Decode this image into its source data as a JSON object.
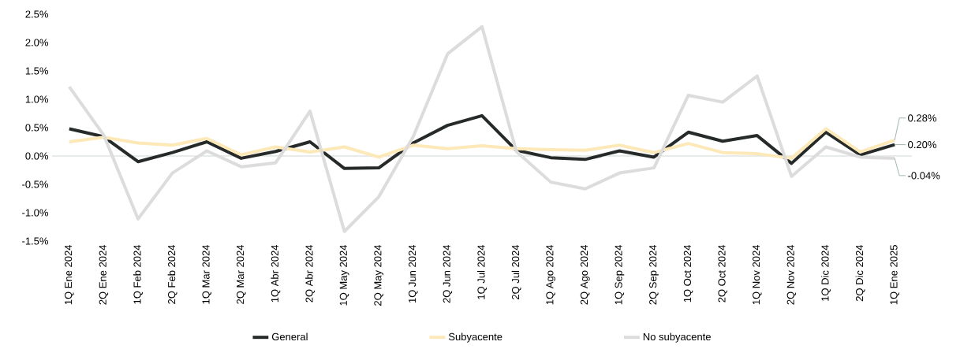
{
  "chart_data": {
    "type": "line",
    "categories": [
      "1Q Ene 2024",
      "2Q Ene 2024",
      "1Q Feb 2024",
      "2Q Feb 2024",
      "1Q Mar 2024",
      "2Q Mar 2024",
      "1Q Abr 2024",
      "2Q Abr 2024",
      "1Q May 2024",
      "2Q May 2024",
      "1Q Jun 2024",
      "2Q Jun 2024",
      "1Q Jul 2024",
      "2Q Jul 2024",
      "1Q Ago 2024",
      "2Q Ago 2024",
      "1Q Sep 2024",
      "2Q Sep 2024",
      "1Q Oct 2024",
      "2Q Oct 2024",
      "1Q Nov 2024",
      "2Q Nov 2024",
      "1Q Dic 2024",
      "2Q Dic 2024",
      "1Q Ene 2025"
    ],
    "series": [
      {
        "name": "General",
        "color": "#262b29",
        "values": [
          0.48,
          0.34,
          -0.1,
          0.06,
          0.25,
          -0.04,
          0.08,
          0.25,
          -0.22,
          -0.21,
          0.23,
          0.54,
          0.71,
          0.1,
          -0.03,
          -0.06,
          0.09,
          -0.02,
          0.42,
          0.26,
          0.36,
          -0.13,
          0.42,
          0.02,
          0.2
        ],
        "value_labels": [
          null,
          null,
          null,
          null,
          null,
          null,
          null,
          null,
          null,
          null,
          null,
          null,
          null,
          null,
          null,
          null,
          null,
          null,
          null,
          null,
          null,
          null,
          null,
          null,
          "0.20%"
        ]
      },
      {
        "name": "Subyacente",
        "color": "#fde8b8",
        "values": [
          0.25,
          0.33,
          0.23,
          0.19,
          0.31,
          0.02,
          0.16,
          0.07,
          0.16,
          -0.02,
          0.19,
          0.13,
          0.18,
          0.13,
          0.11,
          0.1,
          0.19,
          0.06,
          0.22,
          0.06,
          0.04,
          -0.04,
          0.48,
          0.07,
          0.28
        ],
        "value_labels": [
          null,
          null,
          null,
          null,
          null,
          null,
          null,
          null,
          null,
          null,
          null,
          null,
          null,
          null,
          null,
          null,
          null,
          null,
          null,
          null,
          null,
          null,
          null,
          null,
          "0.28%"
        ]
      },
      {
        "name": "No subyacente",
        "color": "#dcdcdc",
        "values": [
          1.22,
          0.37,
          -1.11,
          -0.3,
          0.09,
          -0.19,
          -0.12,
          0.79,
          -1.33,
          -0.72,
          0.34,
          1.8,
          2.28,
          0.08,
          -0.46,
          -0.58,
          -0.3,
          -0.21,
          1.07,
          0.95,
          1.41,
          -0.36,
          0.16,
          -0.02,
          -0.04
        ],
        "value_labels": [
          null,
          null,
          null,
          null,
          null,
          null,
          null,
          null,
          null,
          null,
          null,
          null,
          null,
          null,
          null,
          null,
          null,
          null,
          null,
          null,
          null,
          null,
          null,
          null,
          "-0.04%"
        ]
      }
    ],
    "ylim": [
      -1.5,
      2.5
    ],
    "yticks": [
      {
        "value": -1.5,
        "label": "-1.5%"
      },
      {
        "value": -1.0,
        "label": "-1.0%"
      },
      {
        "value": -0.5,
        "label": "-0.5%"
      },
      {
        "value": 0.0,
        "label": "0.0%"
      },
      {
        "value": 0.5,
        "label": "0.5%"
      },
      {
        "value": 1.0,
        "label": "1.0%"
      },
      {
        "value": 1.5,
        "label": "1.5%"
      },
      {
        "value": 2.0,
        "label": "2.0%"
      },
      {
        "value": 2.5,
        "label": "2.5%"
      }
    ],
    "ref_lines": [
      {
        "axis": "y",
        "value": 0,
        "color": "#d0d8d6"
      }
    ],
    "grid": false,
    "legend": "bottom",
    "marker": "none",
    "line_style": "solid"
  }
}
